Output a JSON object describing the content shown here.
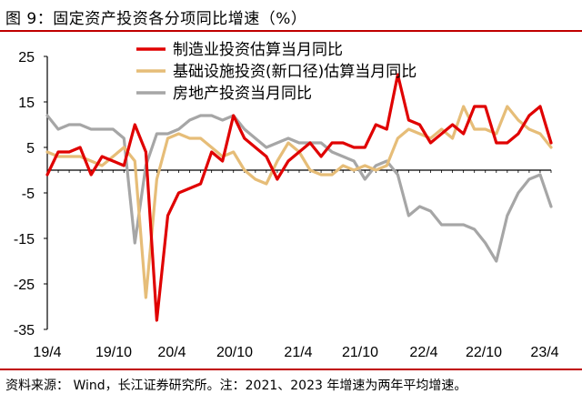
{
  "figure": {
    "title": "图 9：固定资产投资各分项同比增速（%）",
    "source": "资料来源： Wind，长江证券研究所。注：2021、2023 年增速为两年平均增速。"
  },
  "chart_data": {
    "type": "line",
    "xlabel": "",
    "ylabel": "",
    "ylim": [
      -35,
      25
    ],
    "yticks": [
      25,
      15,
      5,
      -5,
      -15,
      -25,
      -35
    ],
    "xtick_labels": [
      "19/4",
      "19/10",
      "20/4",
      "20/10",
      "21/4",
      "21/10",
      "22/4",
      "22/10",
      "23/4"
    ],
    "grid": false,
    "legend_position": "top",
    "series": [
      {
        "name": "制造业投资估算当月同比",
        "color": "#e00000",
        "values": [
          -1,
          4,
          4,
          5,
          -1,
          3,
          2,
          1,
          10,
          4,
          -33,
          -10,
          -5,
          -4,
          -3,
          4,
          2,
          12,
          7,
          5,
          3,
          -2,
          2,
          4,
          6,
          3,
          6,
          6,
          5,
          5,
          10,
          9,
          21,
          11,
          10,
          6,
          8,
          10,
          8,
          14,
          14,
          6,
          6,
          8,
          12,
          14,
          6
        ]
      },
      {
        "name": "基础设施投资(新口径)估算当月同比",
        "color": "#e6bd78",
        "values": [
          4,
          3,
          3,
          3,
          2,
          1,
          3,
          5,
          2,
          -28,
          -2,
          7,
          8,
          7,
          7,
          5,
          3,
          4,
          0,
          -2,
          -3,
          2,
          6,
          4,
          0,
          -1,
          -1,
          1,
          0,
          1,
          0,
          1,
          7,
          9,
          8,
          7,
          9,
          7,
          14,
          9,
          9,
          8,
          14,
          11,
          9,
          8,
          5
        ]
      },
      {
        "name": "房地产投资当月同比",
        "color": "#a6a6a6",
        "values": [
          12,
          9,
          10,
          10,
          9,
          9,
          9,
          7,
          -16,
          1,
          8,
          8,
          9,
          11,
          12,
          12,
          11,
          12,
          9,
          7,
          5,
          6,
          7,
          6,
          6,
          6,
          4,
          3,
          2,
          -2,
          1,
          2,
          -1,
          -10,
          -8,
          -9,
          -12,
          -12,
          -12,
          -13,
          -16,
          -20,
          -10,
          -5,
          -2,
          -1,
          -8
        ]
      }
    ]
  }
}
